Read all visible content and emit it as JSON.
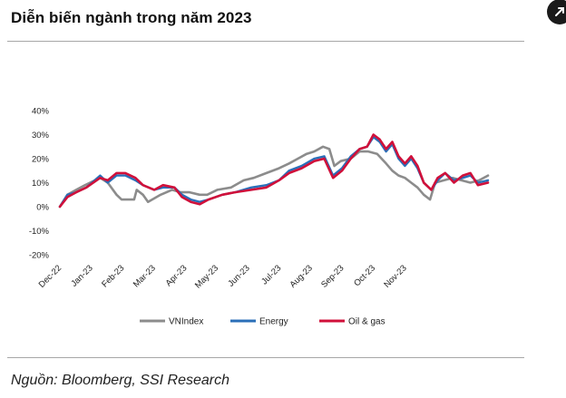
{
  "header": {
    "title": "Diễn biến ngành trong năm 2023"
  },
  "footer": {
    "source": "Nguồn: Bloomberg, SSI Research"
  },
  "colors": {
    "vnindex": "#8c8c8c",
    "energy": "#2a6fb8",
    "oil_gas": "#d0103a",
    "rule": "#a7a7a7"
  },
  "chart_data": {
    "type": "line",
    "title": "Diễn biến ngành trong năm 2023",
    "x_start": "2022-12-30",
    "x_end": "2023-12-05",
    "x_tick_labels": [
      "Dec-22",
      "Jan-23",
      "Feb-23",
      "Mar-23",
      "Apr-23",
      "May-23",
      "Jun-23",
      "Jul-23",
      "Aug-23",
      "Sep-23",
      "Oct-23",
      "Nov-23"
    ],
    "ylim": [
      -0.2,
      0.4
    ],
    "y_ticks": [
      -0.2,
      -0.1,
      0,
      0.1,
      0.2,
      0.3,
      0.4
    ],
    "y_tick_labels": [
      "-20%",
      "-10%",
      "0%",
      "10%",
      "20%",
      "30%",
      "40%"
    ],
    "grid": false,
    "legend_position": "bottom",
    "series": [
      {
        "name": "VNIndex",
        "color": "#8c8c8c",
        "points": [
          [
            "2022-12-30",
            0.0
          ],
          [
            "2023-01-05",
            0.05
          ],
          [
            "2023-01-12",
            0.07
          ],
          [
            "2023-01-19",
            0.09
          ],
          [
            "2023-01-31",
            0.12
          ],
          [
            "2023-02-06",
            0.1
          ],
          [
            "2023-02-13",
            0.05
          ],
          [
            "2023-02-17",
            0.03
          ],
          [
            "2023-02-27",
            0.03
          ],
          [
            "2023-03-01",
            0.07
          ],
          [
            "2023-03-06",
            0.05
          ],
          [
            "2023-03-10",
            0.02
          ],
          [
            "2023-03-20",
            0.05
          ],
          [
            "2023-03-29",
            0.07
          ],
          [
            "2023-04-05",
            0.06
          ],
          [
            "2023-04-12",
            0.06
          ],
          [
            "2023-04-20",
            0.05
          ],
          [
            "2023-04-26",
            0.05
          ],
          [
            "2023-05-04",
            0.07
          ],
          [
            "2023-05-15",
            0.08
          ],
          [
            "2023-05-25",
            0.11
          ],
          [
            "2023-06-02",
            0.12
          ],
          [
            "2023-06-12",
            0.14
          ],
          [
            "2023-06-22",
            0.16
          ],
          [
            "2023-06-30",
            0.18
          ],
          [
            "2023-07-07",
            0.2
          ],
          [
            "2023-07-14",
            0.22
          ],
          [
            "2023-07-20",
            0.23
          ],
          [
            "2023-07-27",
            0.25
          ],
          [
            "2023-08-01",
            0.24
          ],
          [
            "2023-08-05",
            0.17
          ],
          [
            "2023-08-10",
            0.19
          ],
          [
            "2023-08-18",
            0.2
          ],
          [
            "2023-08-25",
            0.23
          ],
          [
            "2023-09-01",
            0.23
          ],
          [
            "2023-09-08",
            0.22
          ],
          [
            "2023-09-15",
            0.18
          ],
          [
            "2023-09-20",
            0.15
          ],
          [
            "2023-09-25",
            0.13
          ],
          [
            "2023-09-30",
            0.12
          ],
          [
            "2023-10-05",
            0.1
          ],
          [
            "2023-10-10",
            0.08
          ],
          [
            "2023-10-15",
            0.05
          ],
          [
            "2023-10-20",
            0.03
          ],
          [
            "2023-10-24",
            0.1
          ],
          [
            "2023-10-31",
            0.11
          ],
          [
            "2023-11-07",
            0.12
          ],
          [
            "2023-11-14",
            0.11
          ],
          [
            "2023-11-21",
            0.1
          ],
          [
            "2023-11-28",
            0.11
          ],
          [
            "2023-12-05",
            0.13
          ]
        ]
      },
      {
        "name": "Energy",
        "color": "#2a6fb8",
        "points": [
          [
            "2022-12-30",
            0.0
          ],
          [
            "2023-01-05",
            0.05
          ],
          [
            "2023-01-12",
            0.06
          ],
          [
            "2023-01-20",
            0.08
          ],
          [
            "2023-01-31",
            0.13
          ],
          [
            "2023-02-06",
            0.1
          ],
          [
            "2023-02-13",
            0.13
          ],
          [
            "2023-02-20",
            0.13
          ],
          [
            "2023-02-28",
            0.11
          ],
          [
            "2023-03-06",
            0.09
          ],
          [
            "2023-03-15",
            0.07
          ],
          [
            "2023-03-22",
            0.08
          ],
          [
            "2023-03-31",
            0.08
          ],
          [
            "2023-04-06",
            0.05
          ],
          [
            "2023-04-13",
            0.03
          ],
          [
            "2023-04-20",
            0.02
          ],
          [
            "2023-04-27",
            0.03
          ],
          [
            "2023-05-08",
            0.05
          ],
          [
            "2023-05-18",
            0.06
          ],
          [
            "2023-05-31",
            0.08
          ],
          [
            "2023-06-12",
            0.09
          ],
          [
            "2023-06-22",
            0.11
          ],
          [
            "2023-06-30",
            0.15
          ],
          [
            "2023-07-10",
            0.17
          ],
          [
            "2023-07-20",
            0.2
          ],
          [
            "2023-07-28",
            0.21
          ],
          [
            "2023-08-04",
            0.13
          ],
          [
            "2023-08-11",
            0.16
          ],
          [
            "2023-08-18",
            0.21
          ],
          [
            "2023-08-25",
            0.24
          ],
          [
            "2023-08-31",
            0.25
          ],
          [
            "2023-09-05",
            0.29
          ],
          [
            "2023-09-10",
            0.27
          ],
          [
            "2023-09-15",
            0.23
          ],
          [
            "2023-09-20",
            0.26
          ],
          [
            "2023-09-25",
            0.2
          ],
          [
            "2023-09-30",
            0.17
          ],
          [
            "2023-10-05",
            0.2
          ],
          [
            "2023-10-10",
            0.16
          ],
          [
            "2023-10-15",
            0.1
          ],
          [
            "2023-10-21",
            0.07
          ],
          [
            "2023-10-26",
            0.11
          ],
          [
            "2023-11-01",
            0.14
          ],
          [
            "2023-11-08",
            0.11
          ],
          [
            "2023-11-15",
            0.12
          ],
          [
            "2023-11-21",
            0.13
          ],
          [
            "2023-11-27",
            0.1
          ],
          [
            "2023-12-05",
            0.11
          ]
        ]
      },
      {
        "name": "Oil & gas",
        "color": "#d0103a",
        "points": [
          [
            "2022-12-30",
            0.0
          ],
          [
            "2023-01-05",
            0.04
          ],
          [
            "2023-01-12",
            0.06
          ],
          [
            "2023-01-20",
            0.08
          ],
          [
            "2023-01-31",
            0.12
          ],
          [
            "2023-02-06",
            0.11
          ],
          [
            "2023-02-13",
            0.14
          ],
          [
            "2023-02-20",
            0.14
          ],
          [
            "2023-02-28",
            0.12
          ],
          [
            "2023-03-06",
            0.09
          ],
          [
            "2023-03-15",
            0.07
          ],
          [
            "2023-03-22",
            0.09
          ],
          [
            "2023-03-31",
            0.08
          ],
          [
            "2023-04-06",
            0.04
          ],
          [
            "2023-04-13",
            0.02
          ],
          [
            "2023-04-20",
            0.01
          ],
          [
            "2023-04-27",
            0.03
          ],
          [
            "2023-05-08",
            0.05
          ],
          [
            "2023-05-18",
            0.06
          ],
          [
            "2023-05-31",
            0.07
          ],
          [
            "2023-06-12",
            0.08
          ],
          [
            "2023-06-22",
            0.11
          ],
          [
            "2023-06-30",
            0.14
          ],
          [
            "2023-07-10",
            0.16
          ],
          [
            "2023-07-20",
            0.19
          ],
          [
            "2023-07-28",
            0.2
          ],
          [
            "2023-08-04",
            0.12
          ],
          [
            "2023-08-11",
            0.15
          ],
          [
            "2023-08-18",
            0.2
          ],
          [
            "2023-08-25",
            0.24
          ],
          [
            "2023-08-31",
            0.25
          ],
          [
            "2023-09-05",
            0.3
          ],
          [
            "2023-09-10",
            0.28
          ],
          [
            "2023-09-15",
            0.24
          ],
          [
            "2023-09-20",
            0.27
          ],
          [
            "2023-09-25",
            0.21
          ],
          [
            "2023-09-30",
            0.18
          ],
          [
            "2023-10-05",
            0.21
          ],
          [
            "2023-10-10",
            0.17
          ],
          [
            "2023-10-15",
            0.1
          ],
          [
            "2023-10-21",
            0.07
          ],
          [
            "2023-10-26",
            0.12
          ],
          [
            "2023-11-01",
            0.14
          ],
          [
            "2023-11-08",
            0.1
          ],
          [
            "2023-11-15",
            0.13
          ],
          [
            "2023-11-21",
            0.14
          ],
          [
            "2023-11-27",
            0.09
          ],
          [
            "2023-12-05",
            0.1
          ]
        ]
      }
    ]
  }
}
